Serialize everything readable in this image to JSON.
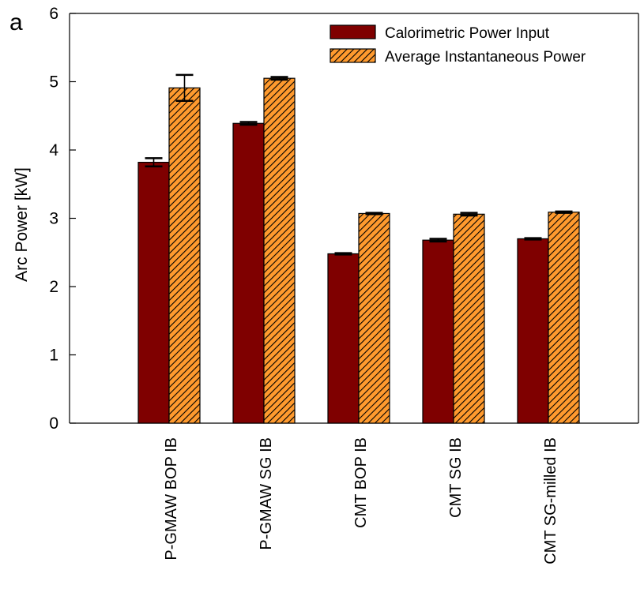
{
  "panel_label": "a",
  "chart_data": {
    "type": "bar",
    "categories": [
      "P-GMAW BOP IB",
      "P-GMAW SG IB",
      "CMT BOP IB",
      "CMT SG IB",
      "CMT SG-milled IB"
    ],
    "series": [
      {
        "name": "Calorimetric Power Input",
        "values": [
          3.82,
          4.39,
          2.48,
          2.68,
          2.7
        ],
        "errors": [
          0.06,
          0.02,
          0.01,
          0.02,
          0.01
        ],
        "color": "#7f0000"
      },
      {
        "name": "Average Instantaneous Power",
        "values": [
          4.91,
          5.05,
          3.07,
          3.06,
          3.09
        ],
        "errors": [
          0.19,
          0.02,
          0.01,
          0.02,
          0.01
        ],
        "color": "#ff9a2e",
        "hatch_color": "#000000"
      }
    ],
    "ylabel": "Arc Power [kW]",
    "xlabel": "",
    "ylim": [
      0,
      6
    ],
    "yticks": [
      "0",
      "1",
      "2",
      "3",
      "4",
      "5",
      "6"
    ],
    "grid": false,
    "legend_position": "top-right"
  }
}
